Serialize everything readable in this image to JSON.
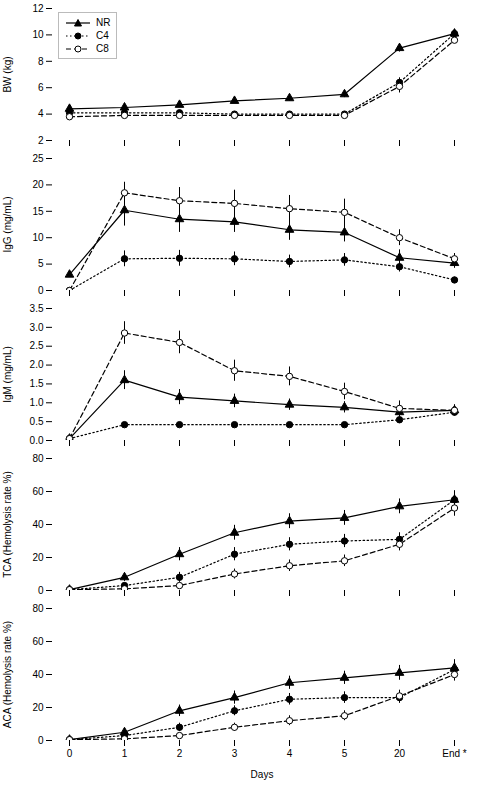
{
  "chart_data": [
    {
      "type": "line",
      "ylabel": "BW (kg)",
      "categories": [
        "0",
        "1",
        "2",
        "3",
        "4",
        "5",
        "20",
        "End *"
      ],
      "series": [
        {
          "name": "NR",
          "color": "black",
          "marker": "triangle",
          "line_style": "solid",
          "values": [
            4.4,
            4.5,
            4.7,
            5.0,
            5.2,
            5.5,
            9.0,
            10.1
          ],
          "errors": [
            0.15,
            0.15,
            0.18,
            0.2,
            0.22,
            0.25,
            0.3,
            0.25
          ]
        },
        {
          "name": "C4",
          "color": "black",
          "marker": "circle",
          "line_style": "dotted",
          "values": [
            4.1,
            4.1,
            4.1,
            4.0,
            4.0,
            4.0,
            6.4,
            10.1
          ],
          "errors": [
            0.15,
            0.15,
            0.15,
            0.15,
            0.15,
            0.15,
            0.35,
            0.25
          ]
        },
        {
          "name": "C8",
          "color": "black",
          "marker": "open_circle",
          "line_style": "dashed",
          "values": [
            3.8,
            3.9,
            3.9,
            3.9,
            3.9,
            3.9,
            6.1,
            9.6
          ],
          "errors": [
            0.15,
            0.15,
            0.15,
            0.15,
            0.15,
            0.15,
            0.5,
            0.25
          ]
        }
      ],
      "ylim": [
        2,
        12
      ],
      "yticks": [
        2,
        4,
        6,
        8,
        10,
        12
      ],
      "tick_labels": "y",
      "legend": "upper left"
    },
    {
      "type": "line",
      "ylabel": "IgG (mg/mL)",
      "categories": [
        "0",
        "1",
        "2",
        "3",
        "4",
        "5",
        "20",
        "End *"
      ],
      "series": [
        {
          "name": "NR",
          "color": "black",
          "marker": "triangle",
          "line_style": "solid",
          "values": [
            3.0,
            15.2,
            13.5,
            13.0,
            11.5,
            11.0,
            6.2,
            5.2
          ],
          "errors": [
            0.5,
            3.0,
            2.5,
            2.0,
            2.0,
            1.8,
            1.5,
            1.0
          ]
        },
        {
          "name": "C4",
          "color": "black",
          "marker": "circle",
          "line_style": "dotted",
          "values": [
            0.0,
            6.0,
            6.1,
            6.0,
            5.5,
            5.8,
            4.5,
            2.0
          ],
          "errors": [
            0.0,
            1.5,
            1.5,
            1.3,
            1.2,
            1.2,
            1.0,
            0.5
          ]
        },
        {
          "name": "C8",
          "color": "black",
          "marker": "open_circle",
          "line_style": "dashed",
          "values": [
            0.0,
            18.5,
            17.0,
            16.5,
            15.5,
            14.8,
            10.0,
            6.0
          ],
          "errors": [
            0.0,
            2.0,
            2.5,
            2.5,
            2.5,
            2.5,
            1.5,
            1.0
          ]
        }
      ],
      "ylim": [
        0,
        25
      ],
      "yticks": [
        0,
        5,
        10,
        15,
        20,
        25
      ],
      "tick_labels": "y"
    },
    {
      "type": "line",
      "ylabel": "IgM (mg/mL)",
      "categories": [
        "0",
        "1",
        "2",
        "3",
        "4",
        "5",
        "20",
        "End *"
      ],
      "series": [
        {
          "name": "NR",
          "color": "black",
          "marker": "triangle",
          "line_style": "solid",
          "values": [
            0.05,
            1.6,
            1.15,
            1.05,
            0.95,
            0.88,
            0.75,
            0.8
          ],
          "errors": [
            0.02,
            0.25,
            0.2,
            0.18,
            0.15,
            0.15,
            0.12,
            0.1
          ]
        },
        {
          "name": "C4",
          "color": "black",
          "marker": "circle",
          "line_style": "dotted",
          "values": [
            0.05,
            0.42,
            0.42,
            0.42,
            0.42,
            0.42,
            0.55,
            0.75
          ],
          "errors": [
            0.02,
            0.05,
            0.05,
            0.05,
            0.05,
            0.05,
            0.08,
            0.08
          ]
        },
        {
          "name": "C8",
          "color": "black",
          "marker": "open_circle",
          "line_style": "dashed",
          "values": [
            0.05,
            2.85,
            2.6,
            1.85,
            1.7,
            1.3,
            0.85,
            0.8
          ],
          "errors": [
            0.02,
            0.3,
            0.3,
            0.28,
            0.25,
            0.22,
            0.2,
            0.15
          ]
        }
      ],
      "ylim": [
        0.0,
        3.5
      ],
      "yticks": [
        {
          "value": 0,
          "label": "0.0"
        },
        0.5,
        {
          "value": 1,
          "label": "1.0"
        },
        1.5,
        {
          "value": 2,
          "label": "2.0"
        },
        2.5,
        {
          "value": 3,
          "label": "3.0"
        },
        3.5
      ],
      "tick_labels": "y"
    },
    {
      "type": "line",
      "ylabel": "TCA (Hemolysis rate %)",
      "categories": [
        "0",
        "1",
        "2",
        "3",
        "4",
        "5",
        "20",
        "End *"
      ],
      "series": [
        {
          "name": "NR",
          "color": "black",
          "marker": "triangle",
          "line_style": "solid",
          "values": [
            0.5,
            8.0,
            22.0,
            35.0,
            42.0,
            44.0,
            51.0,
            55.0
          ],
          "errors": [
            0.3,
            2.5,
            4.0,
            4.5,
            4.5,
            4.5,
            4.5,
            5.5
          ]
        },
        {
          "name": "C4",
          "color": "black",
          "marker": "circle",
          "line_style": "dotted",
          "values": [
            0.5,
            3.0,
            8.0,
            22.0,
            28.0,
            30.0,
            31.0,
            55.0
          ],
          "errors": [
            0.3,
            1.5,
            3.0,
            4.0,
            4.0,
            4.0,
            4.0,
            5.0
          ]
        },
        {
          "name": "C8",
          "color": "black",
          "marker": "open_circle",
          "line_style": "dashed",
          "values": [
            0.5,
            1.0,
            3.0,
            10.0,
            15.0,
            18.0,
            28.0,
            50.0
          ],
          "errors": [
            0.3,
            1.0,
            2.0,
            3.0,
            3.5,
            3.5,
            4.0,
            5.0
          ]
        }
      ],
      "ylim": [
        0,
        80
      ],
      "yticks": [
        0,
        20,
        40,
        60,
        80
      ],
      "tick_labels": "y"
    },
    {
      "type": "line",
      "ylabel": "ACA (Hemolysis rate %)",
      "xlabel": "Days",
      "categories": [
        "0",
        "1",
        "2",
        "3",
        "4",
        "5",
        "20",
        "End *"
      ],
      "series": [
        {
          "name": "NR",
          "color": "black",
          "marker": "triangle",
          "line_style": "solid",
          "values": [
            0.5,
            5.0,
            18.0,
            26.0,
            35.0,
            38.0,
            41.0,
            44.0
          ],
          "errors": [
            0.3,
            2.0,
            3.5,
            4.0,
            4.0,
            4.0,
            4.5,
            5.0
          ]
        },
        {
          "name": "C4",
          "color": "black",
          "marker": "circle",
          "line_style": "dotted",
          "values": [
            0.5,
            3.0,
            8.0,
            18.0,
            25.0,
            26.0,
            26.0,
            43.0
          ],
          "errors": [
            0.3,
            1.5,
            2.5,
            3.0,
            3.5,
            3.5,
            3.5,
            4.5
          ]
        },
        {
          "name": "C8",
          "color": "black",
          "marker": "open_circle",
          "line_style": "dashed",
          "values": [
            0.5,
            1.0,
            3.0,
            8.0,
            12.0,
            15.0,
            27.0,
            40.0
          ],
          "errors": [
            0.3,
            0.8,
            1.5,
            2.5,
            3.0,
            3.0,
            3.5,
            4.0
          ]
        }
      ],
      "ylim": [
        0,
        80
      ],
      "yticks": [
        0,
        20,
        40,
        60,
        80
      ]
    }
  ]
}
